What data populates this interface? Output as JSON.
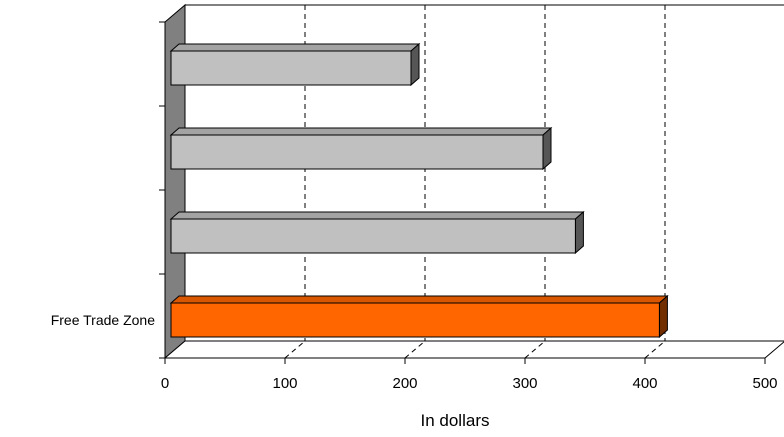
{
  "chart_data": {
    "type": "bar",
    "orientation": "horizontal",
    "three_d": true,
    "categories": [
      "",
      "",
      "",
      "Free Trade Zone"
    ],
    "values": [
      200,
      310,
      337,
      407
    ],
    "bar_colors": [
      "#c0c0c0",
      "#c0c0c0",
      "#c0c0c0",
      "#ff6600"
    ],
    "xlabel": "In dollars",
    "xlim": [
      0,
      500
    ],
    "xticks": [
      0,
      100,
      200,
      300,
      400,
      500
    ],
    "grid": "vertical dashed",
    "legend": "none"
  }
}
